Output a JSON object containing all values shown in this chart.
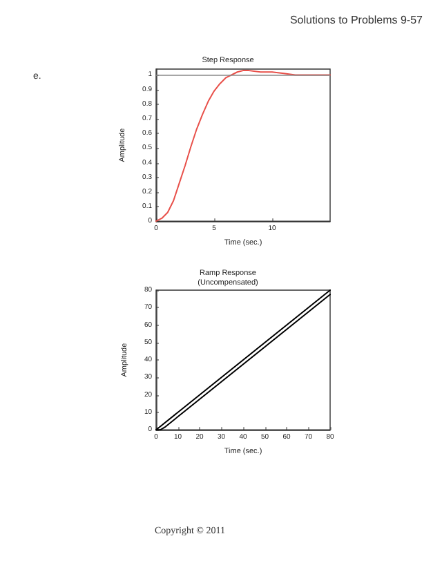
{
  "chart_data": [
    {
      "type": "line",
      "title": "Step Response",
      "xlabel": "Time (sec.)",
      "ylabel": "Amplitude",
      "annotations": [
        "e.",
        "Solutions to Problems 9-57"
      ],
      "xlim": [
        0,
        15
      ],
      "xticks": [
        0,
        5,
        10
      ],
      "ylim": [
        0,
        1.04
      ],
      "yticks": [
        0,
        0.1,
        0.2,
        0.3,
        0.4,
        0.5,
        0.6,
        0.7,
        0.8,
        0.9,
        1
      ],
      "grid": false,
      "marker": "none",
      "line_style": "solid",
      "ref_lines": [
        {
          "axis": "y",
          "value": 1,
          "color": "#888888"
        }
      ],
      "series": [
        {
          "color": "#e8504a",
          "x": [
            0,
            0.5,
            1,
            1.5,
            2,
            2.5,
            3,
            3.5,
            4,
            4.5,
            5,
            5.5,
            6,
            7,
            7.5,
            8,
            9,
            10,
            11,
            12,
            13,
            14,
            15
          ],
          "values": [
            0,
            0.02,
            0.06,
            0.14,
            0.26,
            0.38,
            0.51,
            0.63,
            0.73,
            0.82,
            0.89,
            0.94,
            0.98,
            1.02,
            1.03,
            1.03,
            1.02,
            1.02,
            1.01,
            1.0,
            1.0,
            1.0,
            1.0
          ]
        }
      ]
    },
    {
      "type": "line",
      "title": "Ramp Response",
      "subtitle": "(Uncompensated)",
      "xlabel": "Time (sec.)",
      "ylabel": "Amplitude",
      "annotations": [
        "Copyright © 2011"
      ],
      "xlim": [
        0,
        80
      ],
      "xticks": [
        0,
        10,
        20,
        30,
        40,
        50,
        60,
        70,
        80
      ],
      "ylim": [
        0,
        80
      ],
      "yticks": [
        0,
        10,
        20,
        30,
        40,
        50,
        60,
        70,
        80
      ],
      "grid": false,
      "marker": "none",
      "line_style": "solid",
      "series": [
        {
          "color": "#000000",
          "x": [
            0,
            80
          ],
          "values": [
            0,
            80
          ]
        },
        {
          "color": "#000000",
          "x": [
            0,
            2,
            4,
            80
          ],
          "values": [
            0,
            0,
            1.5,
            77.5
          ]
        }
      ]
    }
  ]
}
